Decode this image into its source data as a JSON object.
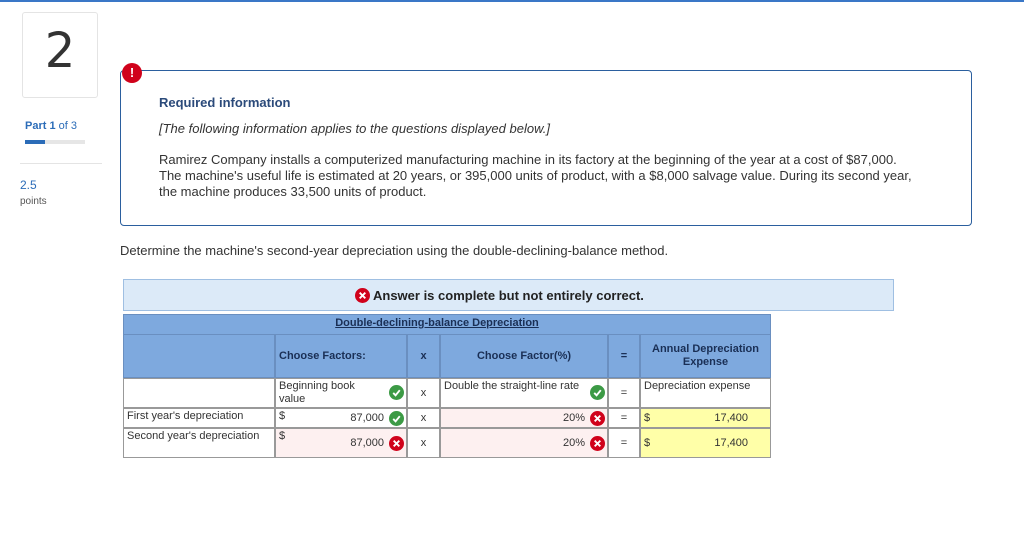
{
  "sidebar": {
    "question_number": "2",
    "part_label": "Part 1",
    "part_of": "of 3",
    "points_value": "2.5",
    "points_label": "points"
  },
  "info_box": {
    "icon": "!",
    "title": "Required information",
    "note": "[The following information applies to the questions displayed below.]",
    "text": "Ramirez Company installs a computerized manufacturing machine in its factory at the beginning of the year at a cost of $87,000. The machine's useful life is estimated at 20 years, or 395,000 units of product, with a $8,000 salvage value. During its second year, the machine produces 33,500 units of product."
  },
  "question": "Determine the machine's second-year depreciation using the double-declining-balance method.",
  "answer_banner": "Answer is complete but not entirely correct.",
  "table": {
    "title": "Double-declining-balance Depreciation",
    "header": [
      "Choose Factors:",
      "x",
      "Choose Factor(%)",
      "=",
      "Annual Depreciation Expense"
    ],
    "factor_row": [
      "Beginning book value",
      "x",
      "Double the straight-line rate",
      "=",
      "Depreciation expense"
    ],
    "rows": [
      [
        "First year's depreciation",
        "$",
        "87,000",
        "x",
        "20%",
        "=",
        "$",
        "17,400"
      ],
      [
        "Second year's depreciation",
        "$",
        "87,000",
        "x",
        "20%",
        "=",
        "$",
        "17,400"
      ]
    ]
  }
}
